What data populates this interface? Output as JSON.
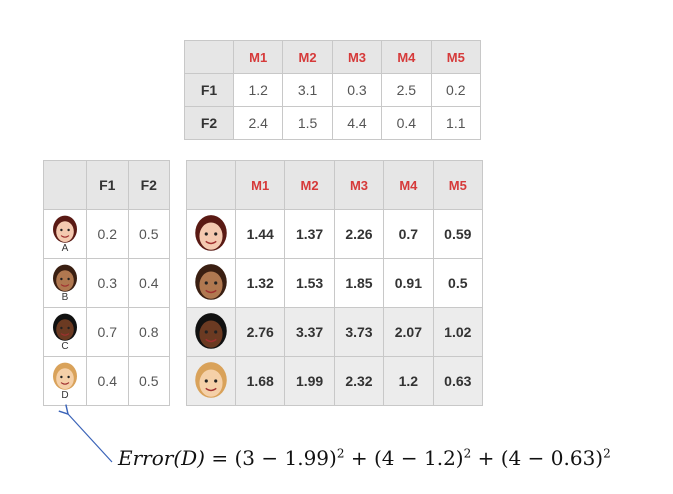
{
  "movies": [
    "M1",
    "M2",
    "M3",
    "M4",
    "M5"
  ],
  "movie_features": [
    {
      "name": "F1",
      "values": [
        "1.2",
        "3.1",
        "0.3",
        "2.5",
        "0.2"
      ]
    },
    {
      "name": "F2",
      "values": [
        "2.4",
        "1.5",
        "4.4",
        "0.4",
        "1.1"
      ]
    }
  ],
  "user_feature_headers": [
    "F1",
    "F2"
  ],
  "users": [
    {
      "label": "A",
      "features": [
        "0.2",
        "0.5"
      ],
      "hair": "#5a1a14",
      "skin": "#f4c9b0"
    },
    {
      "label": "B",
      "features": [
        "0.3",
        "0.4"
      ],
      "hair": "#3a1f12",
      "skin": "#b07850"
    },
    {
      "label": "C",
      "features": [
        "0.7",
        "0.8"
      ],
      "hair": "#111111",
      "skin": "#6b3a22"
    },
    {
      "label": "D",
      "features": [
        "0.4",
        "0.5"
      ],
      "hair": "#d9a25a",
      "skin": "#f5d0a8"
    }
  ],
  "predictions": [
    [
      "1.44",
      "1.37",
      "2.26",
      "0.7",
      "0.59"
    ],
    [
      "1.32",
      "1.53",
      "1.85",
      "0.91",
      "0.5"
    ],
    [
      "2.76",
      "3.37",
      "3.73",
      "2.07",
      "1.02"
    ],
    [
      "1.68",
      "1.99",
      "2.32",
      "1.2",
      "0.63"
    ]
  ],
  "formula": {
    "lhs": "Error(D)",
    "eq": " = ",
    "terms": [
      {
        "a": "3",
        "b": "1.99",
        "exp": "2"
      },
      {
        "a": "4",
        "b": "1.2",
        "exp": "2"
      },
      {
        "a": "4",
        "b": "0.63",
        "exp": "2"
      }
    ],
    "plus": " + "
  }
}
